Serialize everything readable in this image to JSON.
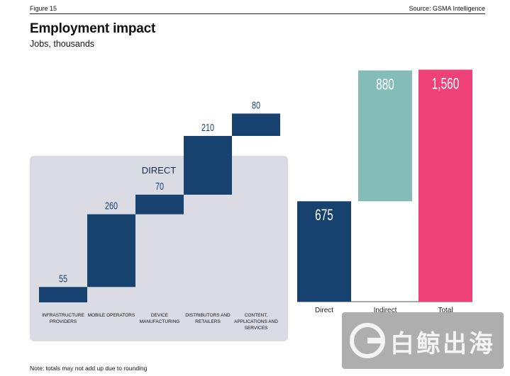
{
  "figure_label": "Figure 15",
  "source": "Source: GSMA Intelligence",
  "note": "Note: totals may not add up due to rounding",
  "watermark": "白鲸出海",
  "colors": {
    "navy": "#17416f",
    "teal": "#84bcb8",
    "pink": "#ed4178",
    "panel": "#dbdce3"
  },
  "chart_data": [
    {
      "type": "bar",
      "subtype": "waterfall",
      "title": "DIRECT",
      "categories": [
        "INFRASTRUCTURE PROVIDERS",
        "MOBILE OPERATORS",
        "DEVICE MANUFACTURING",
        "DISTRIBUTORS AND RETAILERS",
        "CONTENT, APPLICATIONS AND SERVICES"
      ],
      "values": [
        55,
        260,
        70,
        210,
        80
      ],
      "labels": [
        "55",
        "260",
        "70",
        "210",
        "80"
      ]
    },
    {
      "type": "bar",
      "subtype": "stacked-waterfall",
      "title": "Employment impact",
      "subtitle": "Jobs, thousands",
      "categories": [
        "Direct",
        "Indirect",
        "Total"
      ],
      "values": [
        675,
        880,
        1560
      ],
      "labels": [
        "675",
        "880",
        "1,560"
      ]
    }
  ]
}
